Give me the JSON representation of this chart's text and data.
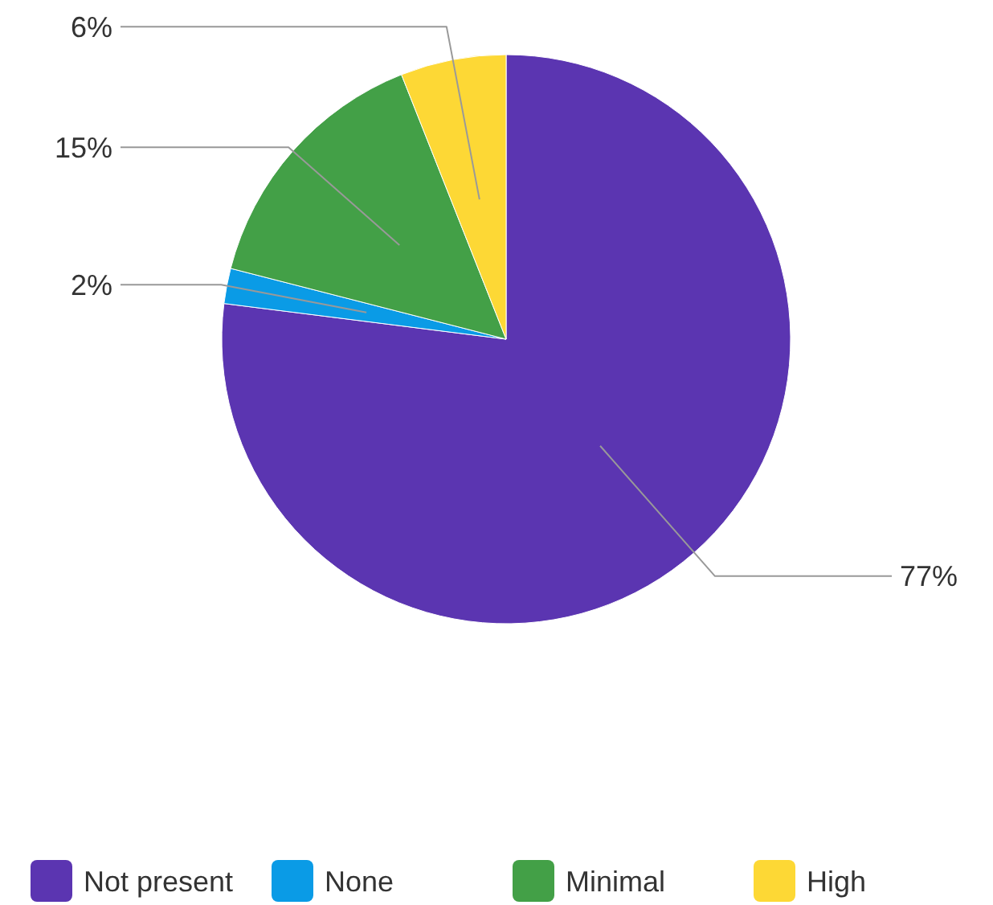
{
  "chart_data": {
    "type": "pie",
    "categories": [
      "Not present",
      "None",
      "Minimal",
      "High"
    ],
    "values": [
      77,
      2,
      15,
      6
    ],
    "colors": [
      "#5b35b1",
      "#0a9be6",
      "#43a047",
      "#fdd835"
    ],
    "value_labels": [
      "77%",
      "2%",
      "15%",
      "6%"
    ],
    "legend": "bottom"
  }
}
